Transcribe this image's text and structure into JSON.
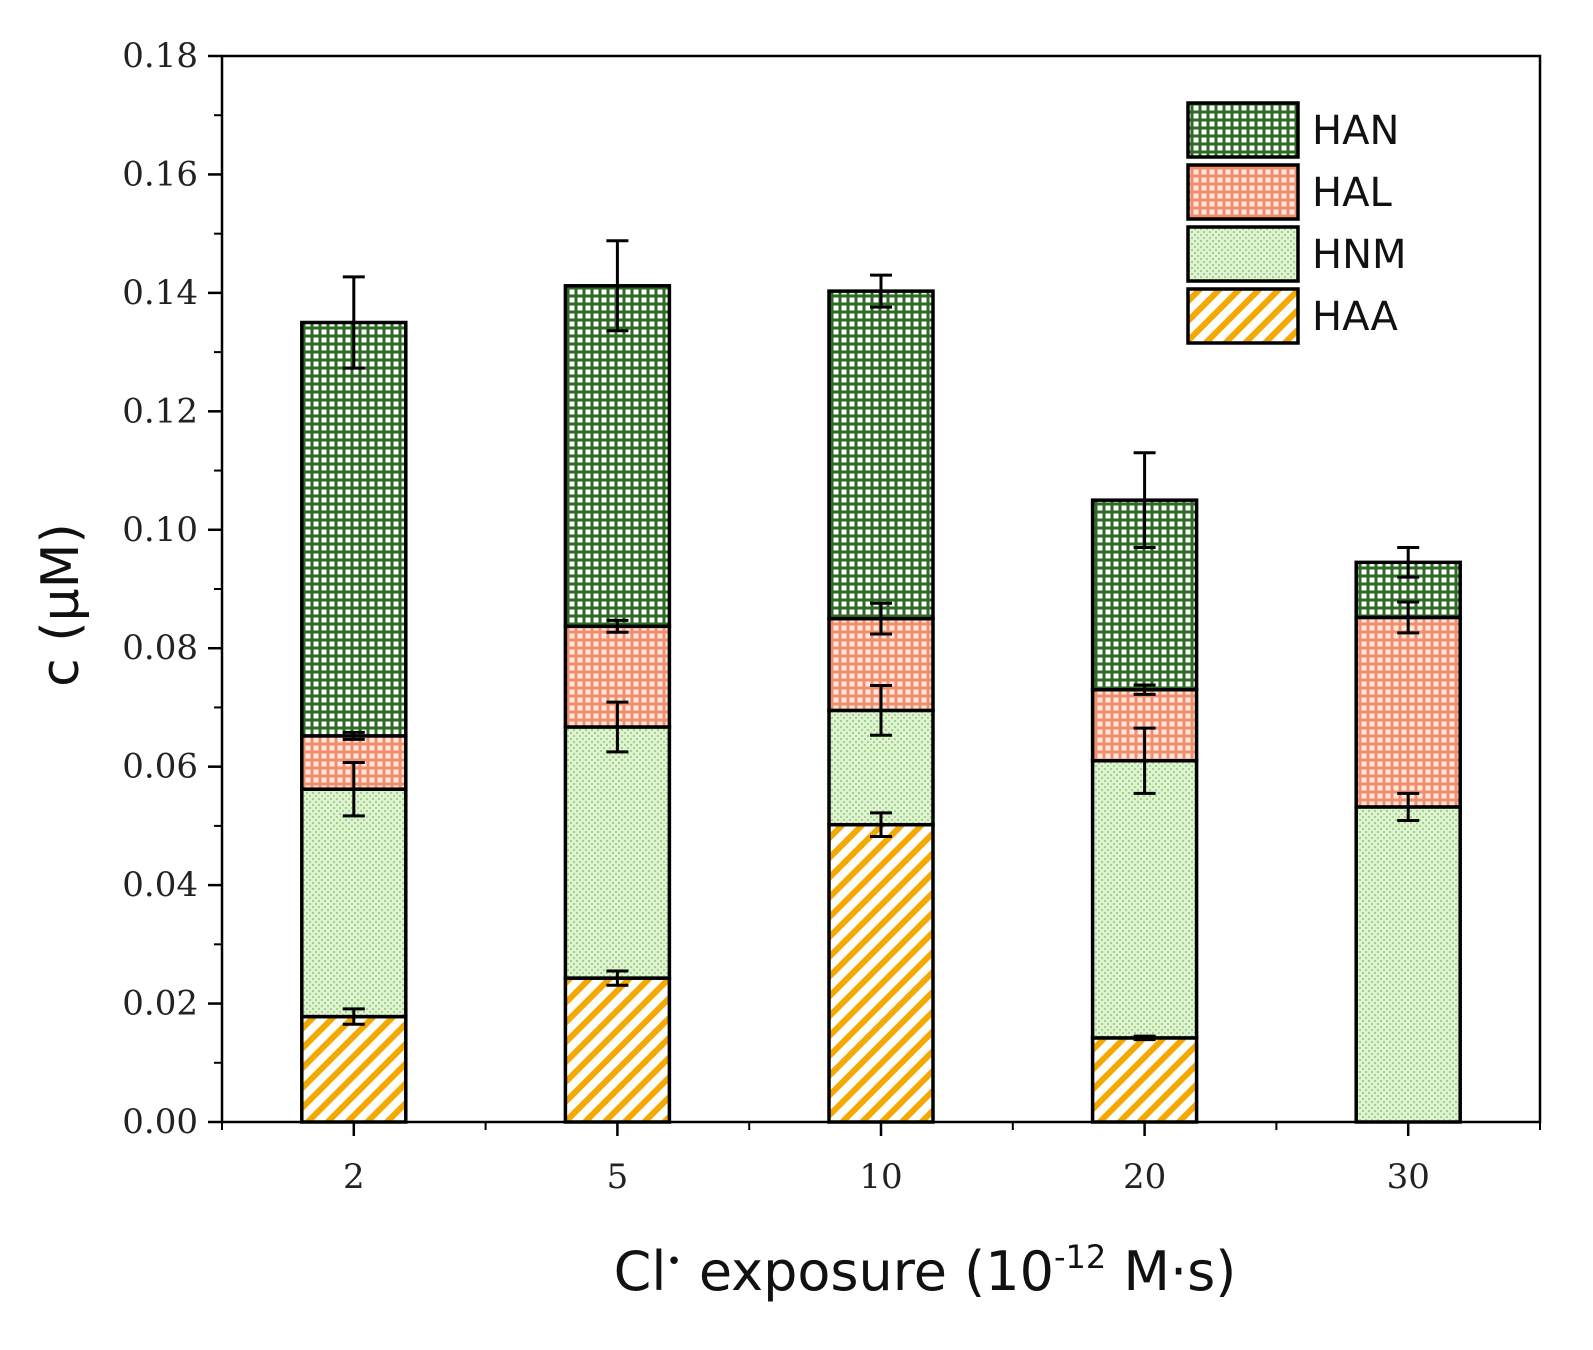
{
  "chart_data": {
    "type": "bar",
    "stacked": true,
    "categories": [
      "2",
      "5",
      "10",
      "20",
      "30"
    ],
    "series": [
      {
        "name": "HAA",
        "values": [
          0.0178,
          0.0243,
          0.0502,
          0.0142,
          0.0
        ],
        "errors": [
          0.0013,
          0.0012,
          0.002,
          0.0003,
          null
        ]
      },
      {
        "name": "HNM",
        "values": [
          0.0384,
          0.0424,
          0.0193,
          0.0468,
          0.0532
        ],
        "errors": [
          0.0045,
          0.0042,
          0.0042,
          0.0055,
          0.0023
        ]
      },
      {
        "name": "HAL",
        "values": [
          0.009,
          0.017,
          0.0155,
          0.012,
          0.032
        ],
        "errors": [
          0.0006,
          0.001,
          0.0026,
          0.0008,
          0.0026
        ]
      },
      {
        "name": "HAN",
        "values": [
          0.0698,
          0.0575,
          0.0553,
          0.032,
          0.0093
        ],
        "errors": [
          0.0077,
          0.0076,
          0.0027,
          0.008,
          0.0025
        ]
      }
    ],
    "title": "",
    "xlabel": "Cl• exposure (10⁻¹² M·s)",
    "xlabel_parts": {
      "base": "Cl",
      "superscript_dot": "•",
      "middle": " exposure (10",
      "superscript": "-12",
      "end": " M·s)"
    },
    "ylabel": "c (μM)",
    "ylim": [
      0,
      0.18
    ],
    "yticks": [
      "0.00",
      "0.02",
      "0.04",
      "0.06",
      "0.08",
      "0.10",
      "0.12",
      "0.14",
      "0.16",
      "0.18"
    ],
    "legend": {
      "placement": "top-right",
      "order": [
        "HAN",
        "HAL",
        "HNM",
        "HAA"
      ]
    },
    "grid": false
  },
  "colors": {
    "HAN": "#3d7a33",
    "HAL": "#f2a084",
    "HNM": "#a8dc92",
    "HAA": "#f5a800",
    "outline": "#000000"
  }
}
